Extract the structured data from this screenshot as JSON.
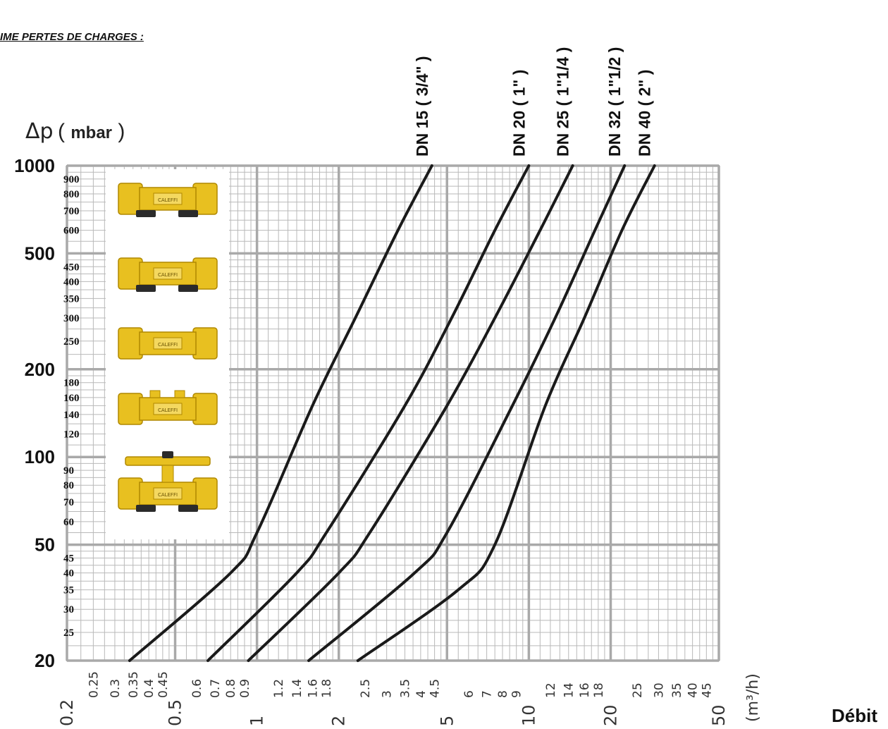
{
  "heading": "IME PERTES DE CHARGES :",
  "chart_data": {
    "type": "line",
    "title": "",
    "ylabel_symbol": "Δp",
    "ylabel_unit": "mbar",
    "xlabel_unit": "(m³/h)",
    "xlabel": "Débit",
    "xscale": "log",
    "yscale": "log",
    "xlim": [
      0.2,
      50
    ],
    "ylim": [
      20,
      1000
    ],
    "y_major_ticks": [
      {
        "v": 1000,
        "label": "1000"
      },
      {
        "v": 500,
        "label": "500"
      },
      {
        "v": 200,
        "label": "200"
      },
      {
        "v": 100,
        "label": "100"
      },
      {
        "v": 50,
        "label": "50"
      },
      {
        "v": 20,
        "label": "20"
      }
    ],
    "y_minor_ticks": [
      {
        "v": 900,
        "label": "900"
      },
      {
        "v": 800,
        "label": "800"
      },
      {
        "v": 700,
        "label": "700"
      },
      {
        "v": 600,
        "label": "600"
      },
      {
        "v": 450,
        "label": "450"
      },
      {
        "v": 400,
        "label": "400"
      },
      {
        "v": 350,
        "label": "350"
      },
      {
        "v": 300,
        "label": "300"
      },
      {
        "v": 250,
        "label": "250"
      },
      {
        "v": 180,
        "label": "180"
      },
      {
        "v": 160,
        "label": "160"
      },
      {
        "v": 140,
        "label": "140"
      },
      {
        "v": 120,
        "label": "120"
      },
      {
        "v": 90,
        "label": "90"
      },
      {
        "v": 80,
        "label": "80"
      },
      {
        "v": 70,
        "label": "70"
      },
      {
        "v": 60,
        "label": "60"
      },
      {
        "v": 45,
        "label": "45"
      },
      {
        "v": 40,
        "label": "40"
      },
      {
        "v": 35,
        "label": "35"
      },
      {
        "v": 30,
        "label": "30"
      },
      {
        "v": 25,
        "label": "25"
      }
    ],
    "x_major_ticks": [
      {
        "v": 0.2,
        "label": "0.2"
      },
      {
        "v": 0.5,
        "label": "0.5"
      },
      {
        "v": 1,
        "label": "1"
      },
      {
        "v": 2,
        "label": "2"
      },
      {
        "v": 5,
        "label": "5"
      },
      {
        "v": 10,
        "label": "10"
      },
      {
        "v": 20,
        "label": "20"
      },
      {
        "v": 50,
        "label": "50"
      }
    ],
    "x_minor_ticks": [
      {
        "v": 0.25,
        "label": "0.25"
      },
      {
        "v": 0.3,
        "label": "0.3"
      },
      {
        "v": 0.35,
        "label": "0.35"
      },
      {
        "v": 0.4,
        "label": "0.4"
      },
      {
        "v": 0.45,
        "label": "0.45"
      },
      {
        "v": 0.6,
        "label": "0.6"
      },
      {
        "v": 0.7,
        "label": "0.7"
      },
      {
        "v": 0.8,
        "label": "0.8"
      },
      {
        "v": 0.9,
        "label": "0.9"
      },
      {
        "v": 1.2,
        "label": "1.2"
      },
      {
        "v": 1.4,
        "label": "1.4"
      },
      {
        "v": 1.6,
        "label": "1.6"
      },
      {
        "v": 1.8,
        "label": "1.8"
      },
      {
        "v": 2.5,
        "label": "2.5"
      },
      {
        "v": 3,
        "label": "3"
      },
      {
        "v": 3.5,
        "label": "3.5"
      },
      {
        "v": 4,
        "label": "4"
      },
      {
        "v": 4.5,
        "label": "4.5"
      },
      {
        "v": 6,
        "label": "6"
      },
      {
        "v": 7,
        "label": "7"
      },
      {
        "v": 8,
        "label": "8"
      },
      {
        "v": 9,
        "label": "9"
      },
      {
        "v": 12,
        "label": "12"
      },
      {
        "v": 14,
        "label": "14"
      },
      {
        "v": 16,
        "label": "16"
      },
      {
        "v": 18,
        "label": "18"
      },
      {
        "v": 25,
        "label": "25"
      },
      {
        "v": 30,
        "label": "30"
      },
      {
        "v": 35,
        "label": "35"
      },
      {
        "v": 40,
        "label": "40"
      },
      {
        "v": 45,
        "label": "45"
      }
    ],
    "series": [
      {
        "name": "DN 15 ( 3/4\" )",
        "points": [
          [
            0.34,
            20
          ],
          [
            0.8,
            40
          ],
          [
            1.0,
            55
          ],
          [
            1.6,
            150
          ],
          [
            2.3,
            300
          ],
          [
            3.3,
            600
          ],
          [
            4.4,
            1000
          ]
        ]
      },
      {
        "name": "DN 20 ( 1\" )",
        "points": [
          [
            0.66,
            20
          ],
          [
            1.4,
            40
          ],
          [
            1.8,
            55
          ],
          [
            3.5,
            150
          ],
          [
            5.2,
            300
          ],
          [
            7.5,
            600
          ],
          [
            10,
            1000
          ]
        ]
      },
      {
        "name": "DN 25 ( 1\"1/4 )",
        "points": [
          [
            0.93,
            20
          ],
          [
            2.0,
            40
          ],
          [
            2.6,
            55
          ],
          [
            5.0,
            150
          ],
          [
            7.5,
            300
          ],
          [
            11,
            600
          ],
          [
            14.5,
            1000
          ]
        ]
      },
      {
        "name": "DN 32 ( 1\"1/2 )",
        "points": [
          [
            1.55,
            20
          ],
          [
            3.8,
            40
          ],
          [
            5.0,
            55
          ],
          [
            8.7,
            150
          ],
          [
            12.5,
            300
          ],
          [
            17.5,
            600
          ],
          [
            22.5,
            1000
          ]
        ]
      },
      {
        "name": "DN 40 ( 2\" )",
        "points": [
          [
            2.35,
            20
          ],
          [
            5.5,
            35
          ],
          [
            7.5,
            50
          ],
          [
            11.5,
            150
          ],
          [
            16,
            300
          ],
          [
            22,
            600
          ],
          [
            29,
            1000
          ]
        ]
      }
    ]
  },
  "colors": {
    "grid": "#b9b9b9",
    "grid_major": "#a9a9a9",
    "curve": "#1a1a1a",
    "brass": "#e8c020",
    "brass_dark": "#b08800",
    "cap": "#2b2b2b"
  },
  "products": [
    {
      "name": "ball-valve-body-caps-icon",
      "brand": "CALEFFI"
    },
    {
      "name": "ball-valve-male-thread-icon",
      "brand": "CALEFFI"
    },
    {
      "name": "strainer-valve-icon",
      "brand": "CALEFFI"
    },
    {
      "name": "union-fitting-icon",
      "brand": "CALEFFI"
    },
    {
      "name": "ball-valve-butterfly-handle-icon",
      "brand": "CALEFFI"
    }
  ]
}
